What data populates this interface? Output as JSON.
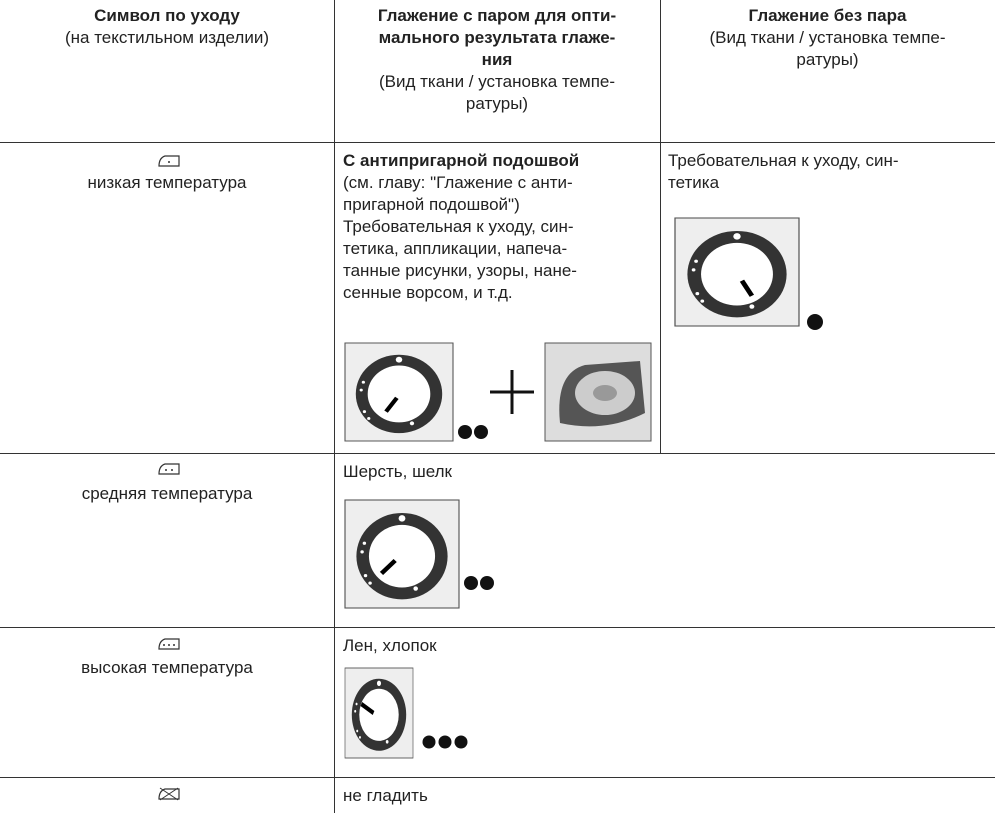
{
  "table": {
    "header": [
      {
        "title": [
          "Символ по уходу"
        ],
        "note": [
          "(на текстильном изделии)"
        ]
      },
      {
        "title": [
          "Глажение с паром для опти-",
          "мального результата глаже-",
          "ния"
        ],
        "note": [
          "(Вид ткани / установка темпе-",
          "ратуры)"
        ]
      },
      {
        "title": [
          "Глажение без пара"
        ],
        "note": [
          "(Вид ткани / установка темпе-",
          "ратуры)"
        ]
      }
    ],
    "rows": [
      {
        "symbol_label": "низкая температура",
        "steam": {
          "title": "С антипригарной подошвой",
          "text": [
            "(см. главу: \"Глажение с анти-",
            "пригарной подошвой\")",
            "Требовательная к уходу, син-",
            "тетика, аппликации, напеча-",
            "танные рисунки, узоры, нане-",
            "сенные ворсом, и т.д."
          ]
        },
        "dry": {
          "text": [
            "Требовательная к уходу, син-",
            "тетика"
          ]
        }
      },
      {
        "symbol_label": "средняя температура",
        "steam": {
          "text": [
            "Шерсть, шелк"
          ]
        }
      },
      {
        "symbol_label": "высокая температура",
        "steam": {
          "text": [
            "Лен, хлопок"
          ]
        }
      },
      {
        "steam": {
          "text": [
            "не гладить"
          ]
        }
      }
    ]
  }
}
